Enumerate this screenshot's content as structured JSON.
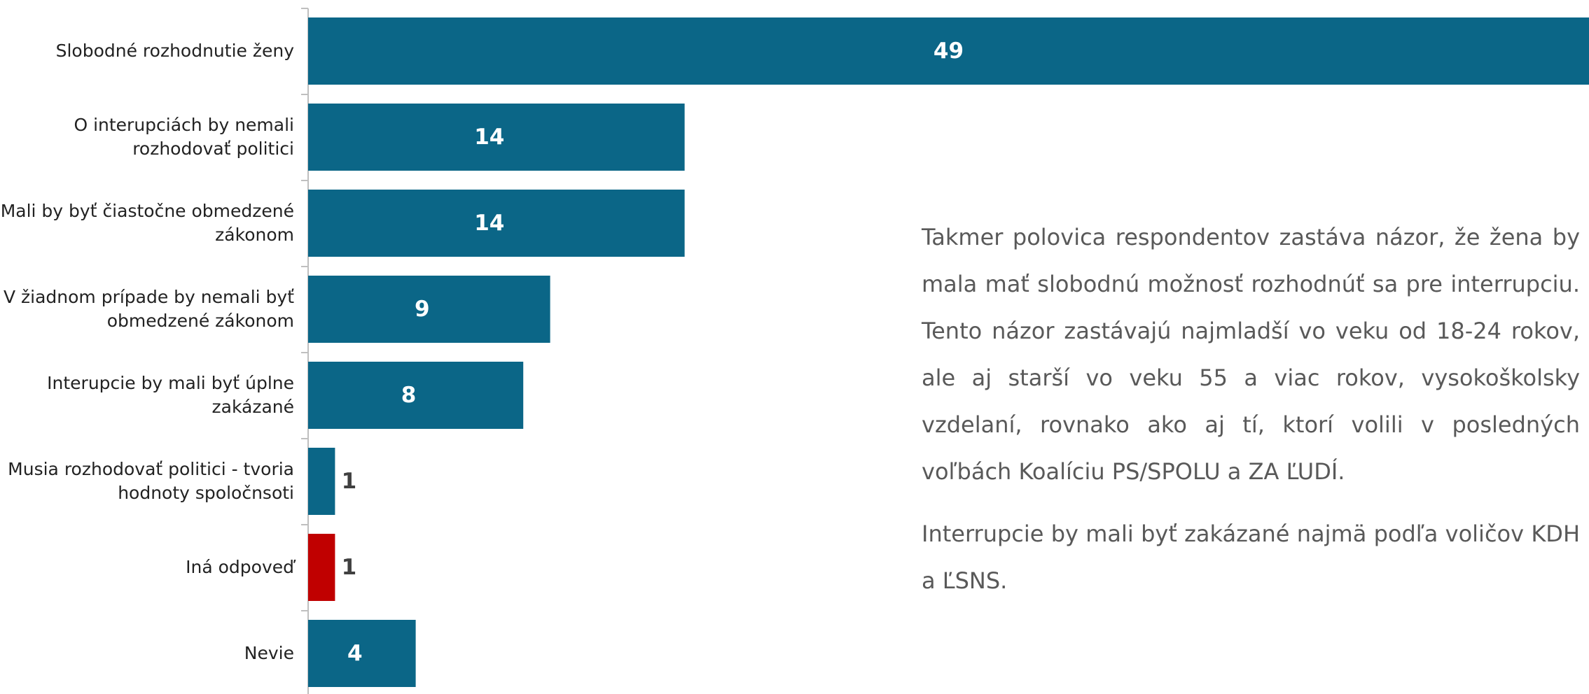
{
  "chart_data": {
    "type": "barh",
    "categories": [
      "Slobodné rozhodnutie ženy",
      "O interupciách by nemali rozhodovať politici",
      "Mali by byť čiastočne obmedzené zákonom",
      "V žiadnom prípade by nemali byť obmedzené zákonom",
      "Interupcie by mali byť úplne zakázané",
      "Musia rozhodovať politici - tvoria hodnoty spoločnsoti",
      "Iná odpoveď",
      "Nevie"
    ],
    "values": [
      49,
      14,
      14,
      9,
      8,
      1,
      1,
      4
    ],
    "colors": [
      "#0b6687",
      "#0b6687",
      "#0b6687",
      "#0b6687",
      "#0b6687",
      "#0b6687",
      "#c00000",
      "#0b6687"
    ],
    "paragraphs": [
      "Takmer polovica respondentov zastáva názor, že žena by mala mať slobodnú možnosť rozhodnúť sa pre interrupciu. Tento názor zastávajú najmladší vo veku od 18-24 rokov, ale aj starší vo veku 55 a viac rokov, vysokoškolsky vzdelaní, rovnako ako aj tí, ktorí volili v posledných voľbách Koalíciu PS/SPOLU a ZA ĽUDÍ.",
      "Interrupcie by mali byť zakázané najmä podľa voličov KDH a ĽSNS."
    ]
  }
}
